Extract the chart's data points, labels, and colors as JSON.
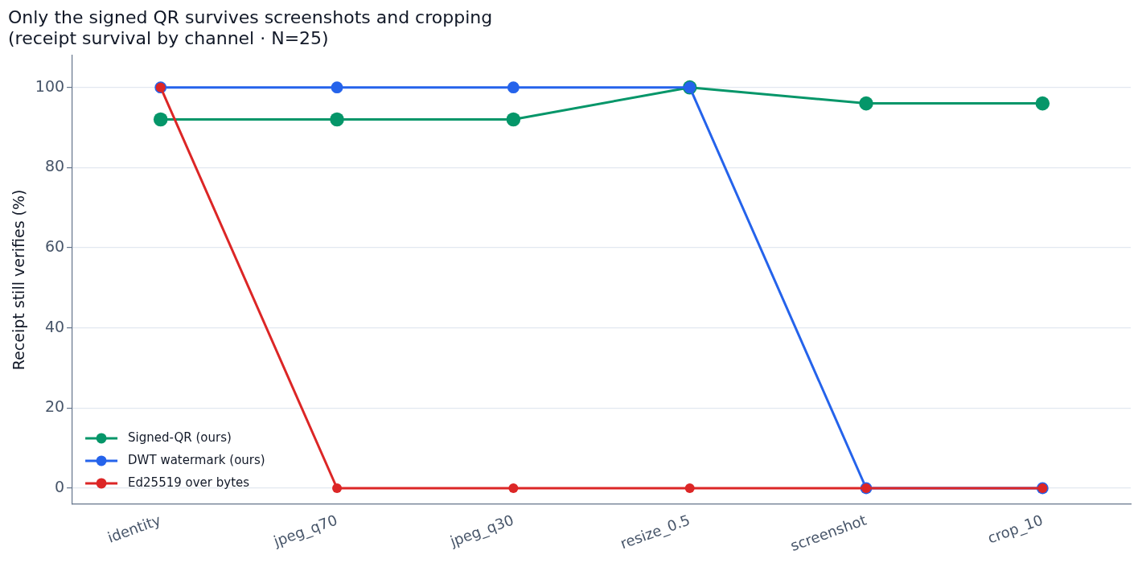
{
  "chart_data": {
    "type": "line",
    "title": "Only the signed QR survives screenshots and cropping\n(receipt survival by channel · N=25)",
    "ylabel": "Receipt still verifies (%)",
    "categories": [
      "identity",
      "jpeg_q70",
      "jpeg_q30",
      "resize_0.5",
      "screenshot",
      "crop_10"
    ],
    "series": [
      {
        "name": "Signed-QR (ours)",
        "color": "#059669",
        "values": [
          92,
          92,
          92,
          100,
          96,
          96
        ]
      },
      {
        "name": "DWT watermark (ours)",
        "color": "#2563eb",
        "values": [
          100,
          100,
          100,
          100,
          0,
          0
        ]
      },
      {
        "name": "Ed25519 over bytes",
        "color": "#dc2626",
        "values": [
          100,
          0,
          0,
          0,
          0,
          0
        ]
      }
    ],
    "ylim": [
      -4,
      108
    ],
    "yticks": [
      0,
      20,
      40,
      60,
      80,
      100
    ],
    "grid": "y",
    "legend": "bottom left",
    "marker": "circle",
    "line_style": "solid"
  }
}
